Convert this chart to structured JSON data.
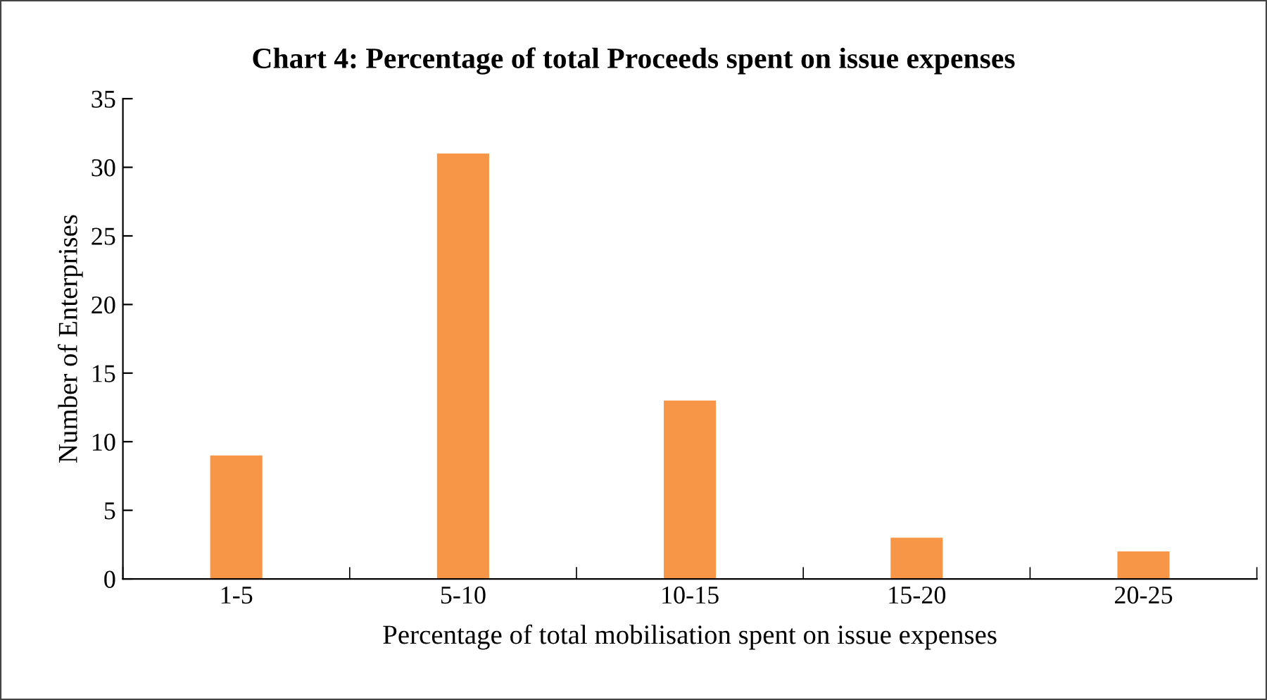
{
  "chart_data": {
    "type": "bar",
    "title": "Chart 4: Percentage of total Proceeds spent on issue expenses",
    "xlabel": "Percentage of total mobilisation spent on issue expenses",
    "ylabel": "Number of Enterprises",
    "categories": [
      "1-5",
      "5-10",
      "10-15",
      "15-20",
      "20-25"
    ],
    "values": [
      9,
      31,
      13,
      3,
      2
    ],
    "color": "#f79646",
    "ylim": [
      0,
      35
    ],
    "yticks": [
      0,
      5,
      10,
      15,
      20,
      25,
      30,
      35
    ],
    "grid": false
  }
}
